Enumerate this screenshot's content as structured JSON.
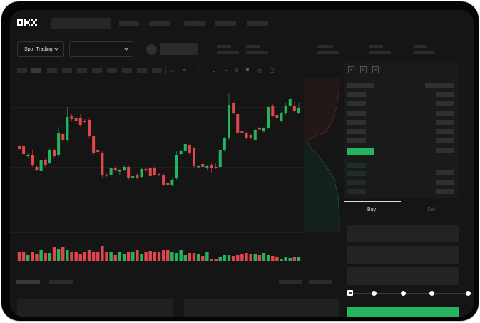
{
  "header": {
    "logo_text": "OKX"
  },
  "market": {
    "type_selector": "Spot Trading"
  },
  "orderbook": {
    "view_icons": [
      "orderbook-both-icon",
      "orderbook-bids-icon",
      "orderbook-asks-icon"
    ]
  },
  "trade_form": {
    "tabs": [
      {
        "label": "Buy",
        "active": true
      },
      {
        "label": "Sell",
        "active": false
      }
    ],
    "slider_percent": 0
  },
  "toolbar": {
    "icons": [
      "line-tool-icon",
      "indicator-icon",
      "fx-icon",
      "wave-icon",
      "pen-icon",
      "camera-icon",
      "settings-icon",
      "fullscreen-icon"
    ]
  },
  "colors": {
    "up": "#26b35e",
    "down": "#e0474c",
    "background": "#151515",
    "buy_button": "#25b561"
  },
  "chart_data": {
    "type": "candlestick",
    "candles_ochl": [
      [
        97,
        93,
        99,
        91
      ],
      [
        97,
        86,
        99,
        84
      ],
      [
        83,
        85,
        87,
        81
      ],
      [
        85,
        70,
        92,
        68
      ],
      [
        68,
        64,
        70,
        62
      ],
      [
        62,
        77,
        79,
        57
      ],
      [
        78,
        70,
        80,
        68
      ],
      [
        74,
        92,
        94,
        72
      ],
      [
        91,
        83,
        93,
        81
      ],
      [
        84,
        115,
        124,
        82
      ],
      [
        114,
        105,
        116,
        103
      ],
      [
        106,
        138,
        152,
        104
      ],
      [
        140,
        135,
        142,
        133
      ],
      [
        137,
        133,
        139,
        131
      ],
      [
        137,
        126,
        142,
        124
      ],
      [
        133,
        131,
        135,
        129
      ],
      [
        134,
        111,
        136,
        109
      ],
      [
        111,
        87,
        113,
        85
      ],
      [
        91,
        89,
        93,
        87
      ],
      [
        88,
        57,
        90,
        53
      ],
      [
        57,
        56,
        59,
        54
      ],
      [
        56,
        66,
        68,
        54
      ],
      [
        67,
        63,
        69,
        61
      ],
      [
        62,
        63,
        65,
        57
      ],
      [
        64,
        68,
        70,
        62
      ],
      [
        68,
        52,
        70,
        50
      ],
      [
        52,
        55,
        57,
        50
      ],
      [
        57,
        53,
        59,
        51
      ],
      [
        54,
        65,
        67,
        52
      ],
      [
        65,
        63,
        67,
        61
      ],
      [
        67,
        55,
        69,
        53
      ],
      [
        67,
        57,
        69,
        55
      ],
      [
        58,
        57,
        60,
        55
      ],
      [
        57,
        43,
        59,
        41
      ],
      [
        45,
        43,
        47,
        41
      ],
      [
        43,
        50,
        52,
        41
      ],
      [
        52,
        84,
        90,
        50
      ],
      [
        86,
        90,
        92,
        84
      ],
      [
        90,
        100,
        102,
        88
      ],
      [
        98,
        87,
        100,
        85
      ],
      [
        94,
        69,
        96,
        67
      ],
      [
        68,
        69,
        71,
        66
      ],
      [
        72,
        68,
        74,
        66
      ],
      [
        66,
        69,
        71,
        64
      ],
      [
        71,
        67,
        73,
        60
      ],
      [
        68,
        67,
        74,
        65
      ],
      [
        68,
        92,
        94,
        66
      ],
      [
        91,
        108,
        110,
        89
      ],
      [
        108,
        155,
        171,
        106
      ],
      [
        157,
        143,
        159,
        141
      ],
      [
        142,
        116,
        144,
        114
      ],
      [
        118,
        116,
        120,
        114
      ],
      [
        115,
        109,
        117,
        107
      ],
      [
        112,
        109,
        114,
        107
      ],
      [
        106,
        120,
        122,
        104
      ],
      [
        122,
        121,
        124,
        119
      ],
      [
        118,
        122,
        124,
        116
      ],
      [
        123,
        152,
        154,
        121
      ],
      [
        154,
        140,
        156,
        138
      ],
      [
        141,
        136,
        143,
        134
      ],
      [
        133,
        143,
        145,
        131
      ],
      [
        143,
        153,
        158,
        141
      ],
      [
        154,
        163,
        168,
        152
      ],
      [
        154,
        147,
        160,
        145
      ],
      [
        144,
        151,
        158,
        142
      ]
    ],
    "volumes": [
      12,
      13,
      8,
      13,
      10,
      15,
      11,
      11,
      19,
      17,
      19,
      16,
      13,
      13,
      10,
      12,
      16,
      13,
      13,
      21,
      13,
      13,
      8,
      13,
      10,
      13,
      13,
      15,
      10,
      12,
      14,
      13,
      12,
      15,
      15,
      13,
      11,
      15,
      9,
      11,
      11,
      10,
      7,
      12,
      3,
      3,
      5,
      8,
      8,
      7,
      8,
      10,
      11,
      10,
      10,
      9,
      11,
      8,
      7,
      5,
      3,
      5,
      4,
      6,
      5
    ]
  }
}
